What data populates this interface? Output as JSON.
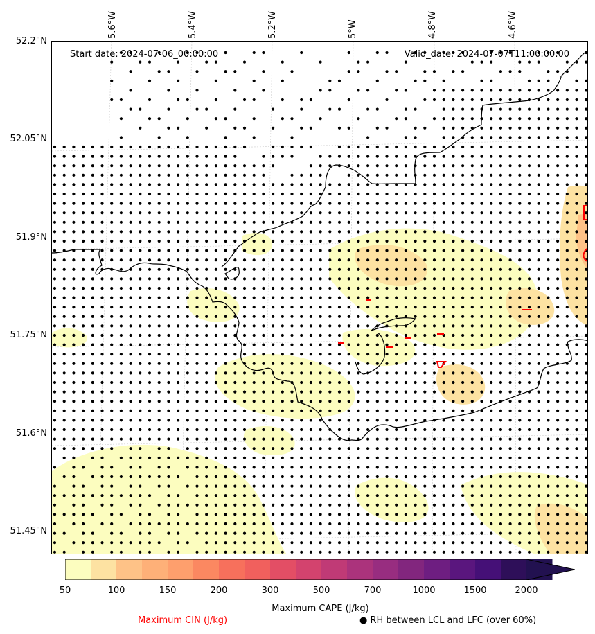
{
  "map": {
    "start_date": "Start date: 2024-07-06_00:00:00",
    "valid_date": "Valid_date: 2024-07-07T11:00:00.00",
    "longitude_labels": [
      "5.6°W",
      "5.4°W",
      "5.2°W",
      "5°W",
      "4.8°W",
      "4.6°W"
    ],
    "latitude_labels": [
      "52.2°N",
      "52.05°N",
      "51.9°N",
      "51.75°N",
      "51.6°N",
      "51.45°N"
    ],
    "colors": {
      "coastline": "#000000",
      "cin_contour": "#ff0000",
      "stipple": "#000000",
      "gridline": "#cccccc"
    }
  },
  "colorbar": {
    "label": "Maximum CAPE (J/kg)",
    "ticks": [
      "50",
      "100",
      "150",
      "200",
      "300",
      "500",
      "700",
      "1000",
      "1500",
      "2000"
    ],
    "colors": [
      "#fcfdbf",
      "#fde2a2",
      "#fec287",
      "#feb078",
      "#fe9f6d",
      "#fb8861",
      "#f7705c",
      "#f1605d",
      "#e34e65",
      "#d3436e",
      "#c03a76",
      "#ab337c",
      "#982d80",
      "#82267e",
      "#6e1e81",
      "#5a167e",
      "#451077",
      "#2e0f59",
      "#221150"
    ]
  },
  "legend": {
    "cin_label": "Maximum CIN (J/kg)",
    "rh_label": "● RH between LCL and LFC (over 60%)",
    "cin_color": "#ff0000"
  }
}
